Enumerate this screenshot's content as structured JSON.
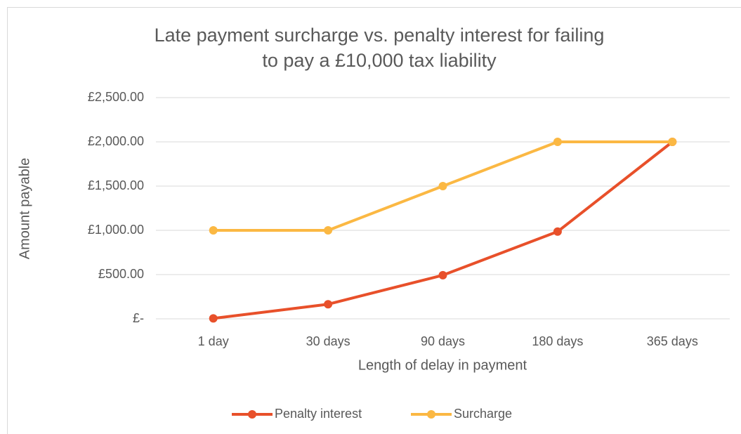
{
  "chart_data": {
    "type": "line",
    "title": "Late payment surcharge vs. penalty interest for failing to pay a £10,000 tax liability",
    "x_label": "Length of delay in payment",
    "y_label": "Amount payable",
    "categories": [
      "1 day",
      "30 days",
      "90 days",
      "180 days",
      "365 days"
    ],
    "series": [
      {
        "name": "Penalty interest",
        "color": "#e8502a",
        "values": [
          5,
          165,
          493,
          986,
          2000
        ]
      },
      {
        "name": "Surcharge",
        "color": "#fbb843",
        "values": [
          1000,
          1000,
          1500,
          2000,
          2000
        ]
      }
    ],
    "ylim": [
      0,
      2500
    ],
    "yticks": [
      {
        "value": 0,
        "label": "£-"
      },
      {
        "value": 500,
        "label": "£500.00"
      },
      {
        "value": 1000,
        "label": "£1,000.00"
      },
      {
        "value": 1500,
        "label": "£1,500.00"
      },
      {
        "value": 2000,
        "label": "£2,000.00"
      },
      {
        "value": 2500,
        "label": "£2,500.00"
      }
    ],
    "grid": true,
    "legend": "bottom"
  }
}
